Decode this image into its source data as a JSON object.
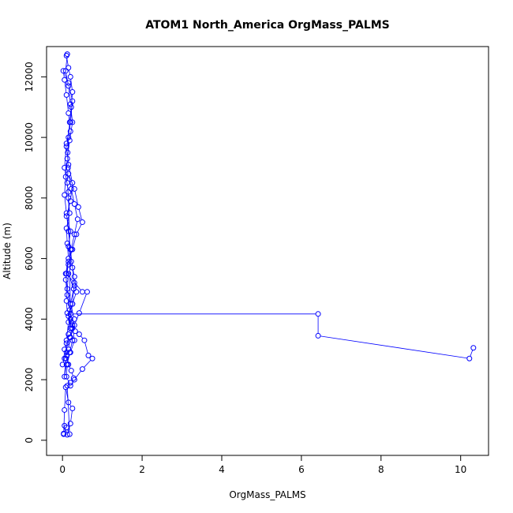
{
  "chart_data": {
    "type": "line",
    "title": "ATOM1 North_America OrgMass_PALMS",
    "xlabel": "OrgMass_PALMS",
    "ylabel": "Altitude (m)",
    "xlim": [
      -0.4,
      10.7
    ],
    "ylim": [
      -500,
      13000
    ],
    "xticks": [
      0,
      2,
      4,
      6,
      8,
      10
    ],
    "yticks": [
      0,
      2000,
      4000,
      6000,
      8000,
      10000,
      12000
    ],
    "grid": false,
    "series": [
      {
        "color": "#0000ff",
        "x": [
          0.03,
          0.05,
          0.12,
          0.2,
          0.25,
          0.15,
          0.08,
          0.05,
          0.03,
          0.1,
          0.18,
          0.12,
          0.2,
          0.28,
          0.22,
          0.15,
          0.1,
          0.05,
          0.1,
          0.18,
          0.25,
          0.3,
          0.2,
          0.12,
          0.08,
          0.15,
          0.12,
          0.1,
          0.18,
          0.15,
          0.12,
          0.14,
          0.13,
          0.15,
          0.18,
          0.22,
          0.25,
          0.2,
          0.15,
          0.1,
          0.12,
          0.08,
          0.15,
          0.2,
          0.25,
          0.18,
          0.12,
          0.08,
          0.05,
          0.1,
          0.15,
          0.2,
          0.25,
          0.3,
          0.2,
          0.15,
          0.1,
          0.08,
          0.05,
          0.1,
          0.2,
          0.3,
          0.25,
          0.18,
          0.12,
          0.08,
          0.15,
          0.22,
          0.3,
          0.38,
          0.3,
          0.22,
          0.15,
          0.3,
          0.4,
          0.5,
          0.35,
          0.25,
          0.15,
          0.1,
          0.3,
          0.5,
          0.62,
          0.42,
          0.3,
          0.2,
          0.15,
          0.05,
          0.0,
          0.1,
          0.15,
          0.2,
          0.25,
          0.28,
          0.15,
          0.1,
          0.12,
          0.22,
          0.32,
          0.42,
          0.55,
          0.65,
          0.75,
          0.5,
          0.3,
          0.2,
          0.1,
          0.12,
          0.18,
          0.25,
          0.2,
          0.15,
          0.25,
          0.35,
          0.3,
          0.22,
          0.15,
          0.2,
          0.1,
          0.2,
          0.25,
          0.15,
          0.1,
          0.2,
          0.15,
          0.1,
          0.05,
          0.02,
          0.15,
          0.25,
          0.2,
          0.1,
          0.05,
          0.15,
          0.2,
          6.42,
          6.42,
          10.22,
          10.32
        ],
        "y": [
          220,
          480,
          180,
          550,
          1050,
          1250,
          1750,
          1000,
          200,
          420,
          200,
          1800,
          1900,
          2050,
          2300,
          2500,
          2800,
          3000,
          3200,
          3400,
          3700,
          4000,
          4500,
          5000,
          5500,
          6000,
          6500,
          7000,
          7500,
          8000,
          8500,
          9000,
          9500,
          10000,
          10500,
          11000,
          11500,
          12000,
          12300,
          12700,
          12750,
          12200,
          11700,
          11100,
          10500,
          9900,
          9300,
          8700,
          8100,
          7500,
          6900,
          6300,
          5700,
          5100,
          4500,
          3900,
          3300,
          2700,
          2100,
          2500,
          2900,
          3300,
          3800,
          4300,
          4800,
          5300,
          5800,
          6300,
          6800,
          7300,
          7800,
          8300,
          8800,
          8300,
          7700,
          7200,
          6800,
          6300,
          5900,
          5500,
          5200,
          4900,
          4900,
          4200,
          3800,
          3400,
          3000,
          2700,
          2500,
          2900,
          3500,
          4000,
          4500,
          5000,
          5500,
          4600,
          4200,
          3900,
          3600,
          3500,
          3300,
          2800,
          2700,
          2350,
          2000,
          1800,
          2100,
          2500,
          2900,
          3300,
          3700,
          4100,
          4500,
          4900,
          5400,
          5900,
          6400,
          6900,
          7400,
          7900,
          8500,
          9100,
          9700,
          10200,
          10800,
          11400,
          11900,
          12200,
          11800,
          11200,
          10500,
          9800,
          9000,
          8200,
          4170,
          4170,
          3450,
          2700,
          3050
        ]
      }
    ]
  }
}
